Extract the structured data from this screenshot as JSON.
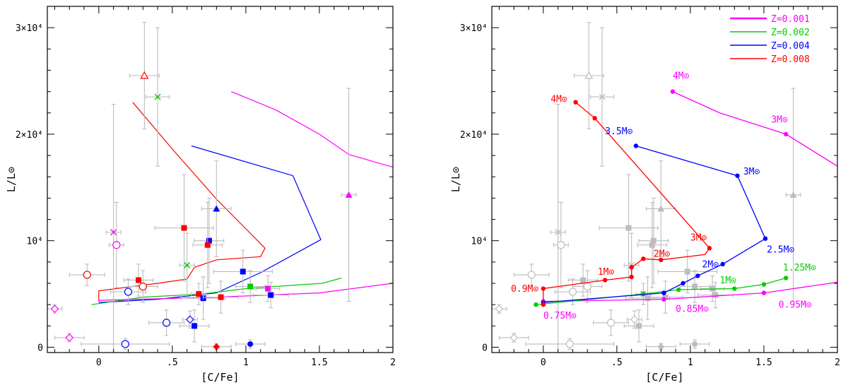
{
  "chart_data": [
    {
      "type": "scatter",
      "xlabel": "[C/Fe]",
      "ylabel": "L/L⊙",
      "xlim": [
        -0.35,
        2.0
      ],
      "ylim": [
        -500,
        32000
      ],
      "x_ticks": [
        "0",
        ".5",
        "1",
        "1.5",
        "2"
      ],
      "y_ticks": [
        "0",
        "10⁴",
        "2×10⁴",
        "3×10⁴"
      ],
      "tracks": [
        {
          "color": "#ff00ff",
          "points": [
            [
              0.9,
              24000
            ],
            [
              1.2,
              22300
            ],
            [
              1.5,
              20000
            ],
            [
              1.7,
              18100
            ],
            [
              2.0,
              16900
            ]
          ]
        },
        {
          "color": "#0000ff",
          "points": [
            [
              0.63,
              18900
            ],
            [
              1.32,
              16100
            ],
            [
              1.51,
              10100
            ],
            [
              1.1,
              7000
            ],
            [
              0.8,
              5100
            ],
            [
              0.4,
              4500
            ],
            [
              0.0,
              4200
            ]
          ]
        },
        {
          "color": "#ff0000",
          "points": [
            [
              0.23,
              23000
            ],
            [
              0.5,
              18600
            ],
            [
              0.8,
              13900
            ],
            [
              1.13,
              9300
            ],
            [
              1.1,
              8500
            ],
            [
              0.8,
              8200
            ],
            [
              0.65,
              7500
            ],
            [
              0.6,
              6400
            ],
            [
              0.4,
              6000
            ],
            [
              0.0,
              5300
            ],
            [
              0.0,
              4300
            ]
          ]
        },
        {
          "color": "#00cc00",
          "points": [
            [
              -0.05,
              4000
            ],
            [
              0.3,
              4700
            ],
            [
              0.7,
              5000
            ],
            [
              1.0,
              5500
            ],
            [
              1.3,
              5800
            ],
            [
              1.52,
              6000
            ],
            [
              1.65,
              6500
            ]
          ]
        },
        {
          "color": "#ff00ff",
          "points": [
            [
              0.0,
              4400
            ],
            [
              0.8,
              4700
            ],
            [
              1.5,
              5100
            ],
            [
              2.0,
              6000
            ]
          ]
        }
      ],
      "stars": [
        {
          "x": 0.31,
          "y": 25500,
          "xerr": 0.1,
          "yerr": 5000,
          "marker": "triangle-open",
          "color": "#ff0000"
        },
        {
          "x": 0.4,
          "y": 23500,
          "xerr": 0.08,
          "yerr": 6500,
          "marker": "cross-x",
          "color": "#00cc00"
        },
        {
          "x": 1.7,
          "y": 14300,
          "xerr": 0.05,
          "yerr": 10000,
          "marker": "triangle-filled",
          "color": "#ff00ff"
        },
        {
          "x": 0.8,
          "y": 13000,
          "xerr": 0.1,
          "yerr": 4500,
          "marker": "triangle-filled",
          "color": "#0000ff"
        },
        {
          "x": 0.58,
          "y": 11200,
          "xerr": 0.2,
          "yerr": 5000,
          "marker": "square-filled",
          "color": "#ff0000"
        },
        {
          "x": 0.1,
          "y": 10800,
          "xerr": 0.05,
          "yerr": 12000,
          "marker": "cross-x",
          "color": "#ff00ff"
        },
        {
          "x": 0.75,
          "y": 10000,
          "xerr": 0.1,
          "yerr": 4000,
          "marker": "square-filled",
          "color": "#0000ff"
        },
        {
          "x": 0.74,
          "y": 9600,
          "xerr": 0.1,
          "yerr": 4000,
          "marker": "square-filled",
          "color": "#ff0000"
        },
        {
          "x": 0.12,
          "y": 9600,
          "xerr": 0.05,
          "yerr": 4000,
          "marker": "circle-open",
          "color": "#ff00ff"
        },
        {
          "x": 0.6,
          "y": 7700,
          "xerr": 0.05,
          "yerr": 3000,
          "marker": "cross-x",
          "color": "#00cc00"
        },
        {
          "x": 0.98,
          "y": 7100,
          "xerr": 0.2,
          "yerr": 2000,
          "marker": "square-filled",
          "color": "#0000ff"
        },
        {
          "x": -0.08,
          "y": 6800,
          "xerr": 0.12,
          "yerr": 1000,
          "marker": "circle-open",
          "color": "#ff0000"
        },
        {
          "x": 0.27,
          "y": 6300,
          "xerr": 0.1,
          "yerr": 1500,
          "marker": "square-filled",
          "color": "#ff0000"
        },
        {
          "x": 0.3,
          "y": 5700,
          "xerr": 0.1,
          "yerr": 1500,
          "marker": "circle-open",
          "color": "#ff0000"
        },
        {
          "x": 1.03,
          "y": 5700,
          "xerr": 0.1,
          "yerr": 1500,
          "marker": "square-filled",
          "color": "#00cc00"
        },
        {
          "x": 1.15,
          "y": 5500,
          "xerr": 0.08,
          "yerr": 1200,
          "marker": "square-filled",
          "color": "#ff00ff"
        },
        {
          "x": 0.2,
          "y": 5200,
          "xerr": 0.12,
          "yerr": 1200,
          "marker": "circle-open",
          "color": "#0000ff"
        },
        {
          "x": 1.17,
          "y": 4900,
          "xerr": 0.12,
          "yerr": 1200,
          "marker": "square-filled",
          "color": "#0000ff"
        },
        {
          "x": 0.68,
          "y": 5000,
          "xerr": 0.05,
          "yerr": 1000,
          "marker": "square-filled",
          "color": "#ff0000"
        },
        {
          "x": 0.71,
          "y": 4600,
          "xerr": 0.15,
          "yerr": 2000,
          "marker": "square-filled",
          "color": "#0000ff"
        },
        {
          "x": 0.83,
          "y": 4700,
          "xerr": 0.12,
          "yerr": 1500,
          "marker": "square-filled",
          "color": "#ff0000"
        },
        {
          "x": -0.3,
          "y": 3600,
          "xerr": 0.05,
          "yerr": 400,
          "marker": "diamond-open",
          "color": "#ff00ff"
        },
        {
          "x": 0.62,
          "y": 2600,
          "xerr": 0.05,
          "yerr": 800,
          "marker": "diamond-open",
          "color": "#0000ff"
        },
        {
          "x": 0.46,
          "y": 2300,
          "xerr": 0.12,
          "yerr": 1200,
          "marker": "circle-open",
          "color": "#0000ff"
        },
        {
          "x": 0.65,
          "y": 2000,
          "xerr": 0.1,
          "yerr": 1500,
          "marker": "square-filled",
          "color": "#0000ff"
        },
        {
          "x": -0.2,
          "y": 900,
          "xerr": 0.1,
          "yerr": 400,
          "marker": "diamond-open",
          "color": "#ff00ff"
        },
        {
          "x": 0.18,
          "y": 300,
          "xerr": 0.3,
          "yerr": 500,
          "marker": "circle-open",
          "color": "#0000ff"
        },
        {
          "x": 1.03,
          "y": 300,
          "xerr": 0.1,
          "yerr": 400,
          "marker": "circle-filled",
          "color": "#0000ff"
        },
        {
          "x": 0.8,
          "y": 50,
          "xerr": 0.1,
          "yerr": 300,
          "marker": "diamond-filled",
          "color": "#ff0000"
        }
      ]
    },
    {
      "type": "line",
      "xlabel": "[C/Fe]",
      "ylabel": "L/L⊙",
      "xlim": [
        -0.35,
        2.0
      ],
      "ylim": [
        -500,
        32000
      ],
      "x_ticks": [
        "0",
        ".5",
        "1",
        "1.5",
        "2"
      ],
      "y_ticks": [
        "0",
        "10⁴",
        "2×10⁴",
        "3×10⁴"
      ],
      "legend_position": "top-right",
      "series": [
        {
          "name": "Z=0.001",
          "color": "#ff00ff",
          "lines": [
            [
              [
                0.88,
                24000
              ],
              [
                1.2,
                22000
              ],
              [
                1.65,
                20000
              ],
              [
                2.0,
                17000
              ]
            ],
            [
              [
                0.0,
                4300
              ],
              [
                0.82,
                4500
              ],
              [
                1.5,
                5100
              ],
              [
                2.0,
                6100
              ]
            ]
          ],
          "masses": [
            {
              "x": 0.88,
              "y": 24000,
              "label": "4M⊙",
              "lx": 0.88,
              "ly": 25200
            },
            {
              "x": 1.65,
              "y": 20000,
              "label": "3M⊙",
              "lx": 1.55,
              "ly": 21100
            },
            {
              "x": 0.82,
              "y": 4500,
              "label": "0.85M⊙",
              "lx": 0.9,
              "ly": 3300
            },
            {
              "x": 1.5,
              "y": 5100,
              "label": "0.95M⊙",
              "lx": 1.6,
              "ly": 3700
            },
            {
              "x": 0.0,
              "y": 4300,
              "label": "0.75M⊙",
              "lx": 0.0,
              "ly": 2700
            }
          ]
        },
        {
          "name": "Z=0.002",
          "color": "#00cc00",
          "lines": [
            [
              [
                -0.05,
                4000
              ],
              [
                0.68,
                5000
              ],
              [
                0.92,
                5400
              ],
              [
                1.3,
                5500
              ],
              [
                1.5,
                5900
              ],
              [
                1.65,
                6500
              ]
            ]
          ],
          "masses": [
            {
              "x": -0.05,
              "y": 4000,
              "label": "",
              "lx": 0,
              "ly": 0
            },
            {
              "x": 0.68,
              "y": 5000,
              "label": "",
              "lx": 0,
              "ly": 0
            },
            {
              "x": 0.92,
              "y": 5400,
              "label": "",
              "lx": 0,
              "ly": 0
            },
            {
              "x": 1.3,
              "y": 5500,
              "label": "1M⊙",
              "lx": 1.2,
              "ly": 6000
            },
            {
              "x": 1.5,
              "y": 5900,
              "label": "",
              "lx": 0,
              "ly": 0
            },
            {
              "x": 1.65,
              "y": 6500,
              "label": "1.25M⊙",
              "lx": 1.63,
              "ly": 7200
            }
          ]
        },
        {
          "name": "Z=0.004",
          "color": "#0000ff",
          "lines": [
            [
              [
                0.63,
                18900
              ],
              [
                1.32,
                16100
              ],
              [
                1.51,
                10200
              ],
              [
                1.22,
                7800
              ],
              [
                1.05,
                6700
              ],
              [
                0.95,
                6000
              ],
              [
                0.82,
                5100
              ],
              [
                0.0,
                4200
              ]
            ]
          ],
          "masses": [
            {
              "x": 0.63,
              "y": 18900,
              "label": "3.5M⊙",
              "lx": 0.42,
              "ly": 20000
            },
            {
              "x": 1.32,
              "y": 16100,
              "label": "3M⊙",
              "lx": 1.36,
              "ly": 16200
            },
            {
              "x": 1.51,
              "y": 10200,
              "label": "2.5M⊙",
              "lx": 1.52,
              "ly": 8900
            },
            {
              "x": 1.22,
              "y": 7800,
              "label": "2M⊙",
              "lx": 1.08,
              "ly": 7500
            },
            {
              "x": 1.05,
              "y": 6700,
              "label": "",
              "lx": 0,
              "ly": 0
            },
            {
              "x": 0.95,
              "y": 6000,
              "label": "",
              "lx": 0,
              "ly": 0
            },
            {
              "x": 0.82,
              "y": 5100,
              "label": "",
              "lx": 0,
              "ly": 0
            },
            {
              "x": 0.0,
              "y": 4200,
              "label": "",
              "lx": 0,
              "ly": 0
            }
          ]
        },
        {
          "name": "Z=0.008",
          "color": "#ff0000",
          "lines": [
            [
              [
                0.22,
                23000
              ],
              [
                0.35,
                21500
              ],
              [
                1.13,
                9300
              ],
              [
                1.1,
                8700
              ],
              [
                0.8,
                8200
              ],
              [
                0.68,
                8300
              ],
              [
                0.6,
                7500
              ],
              [
                0.6,
                6600
              ],
              [
                0.42,
                6300
              ],
              [
                0.0,
                5500
              ],
              [
                0.0,
                4000
              ]
            ]
          ],
          "masses": [
            {
              "x": 0.22,
              "y": 23000,
              "label": "4M⊙",
              "lx": 0.05,
              "ly": 23000
            },
            {
              "x": 0.35,
              "y": 21500,
              "label": "",
              "lx": 0,
              "ly": 0
            },
            {
              "x": 1.13,
              "y": 9300,
              "label": "3M⊙",
              "lx": 1.0,
              "ly": 10000
            },
            {
              "x": 0.8,
              "y": 8200,
              "label": "2M⊙",
              "lx": 0.75,
              "ly": 8500
            },
            {
              "x": 0.68,
              "y": 8300,
              "label": "",
              "lx": 0,
              "ly": 0
            },
            {
              "x": 0.6,
              "y": 7500,
              "label": "1M⊙",
              "lx": 0.37,
              "ly": 6800
            },
            {
              "x": 0.6,
              "y": 6600,
              "label": "",
              "lx": 0,
              "ly": 0
            },
            {
              "x": 0.42,
              "y": 6300,
              "label": "",
              "lx": 0,
              "ly": 0
            },
            {
              "x": 0.0,
              "y": 5500,
              "label": "0.9M⊙",
              "lx": -0.22,
              "ly": 5200
            },
            {
              "x": 0.0,
              "y": 4000,
              "label": "",
              "lx": 0,
              "ly": 0
            }
          ]
        }
      ]
    }
  ]
}
